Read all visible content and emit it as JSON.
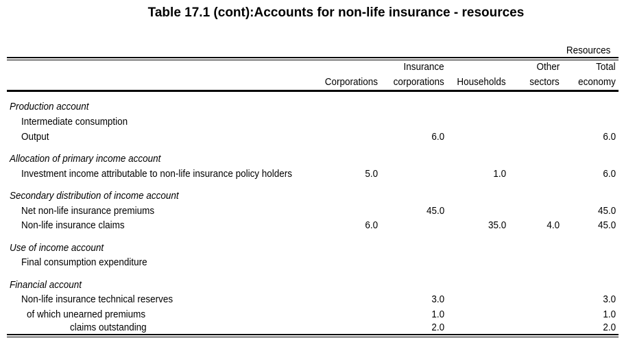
{
  "title": "Table 17.1 (cont):Accounts for non-life insurance - resources",
  "resources_label": "Resources",
  "columns": {
    "corporations": "Corporations",
    "insurance_line1": "Insurance",
    "insurance_line2": "corporations",
    "households": "Households",
    "other_line1": "Other",
    "other_line2": "sectors",
    "total_line1": "Total",
    "total_line2": "economy"
  },
  "sections": {
    "production": {
      "heading": "Production account",
      "intermediate_consumption": {
        "label": "Intermediate consumption"
      },
      "output": {
        "label": "Output",
        "insurance": "6.0",
        "total": "6.0"
      }
    },
    "primary_income": {
      "heading": "Allocation of primary income account",
      "investment_income": {
        "label": "Investment income attributable to non-life insurance policy holders",
        "corporations": "5.0",
        "households": "1.0",
        "total": "6.0"
      }
    },
    "secondary_distribution": {
      "heading": "Secondary distribution of income account",
      "premiums": {
        "label": "Net non-life insurance premiums",
        "insurance": "45.0",
        "total": "45.0"
      },
      "claims": {
        "label": "Non-life insurance claims",
        "corporations": "6.0",
        "households": "35.0",
        "other": "4.0",
        "total": "45.0"
      }
    },
    "use_of_income": {
      "heading": "Use of income account",
      "final_consumption": {
        "label": "Final consumption expenditure"
      }
    },
    "financial": {
      "heading": "Financial account",
      "technical_reserves": {
        "label": "Non-life insurance technical reserves",
        "insurance": "3.0",
        "total": "3.0"
      },
      "unearned_premiums": {
        "label": "of which unearned premiums",
        "insurance": "1.0",
        "total": "1.0"
      },
      "claims_outstanding": {
        "label": "claims outstanding",
        "insurance": "2.0",
        "total": "2.0"
      }
    }
  }
}
